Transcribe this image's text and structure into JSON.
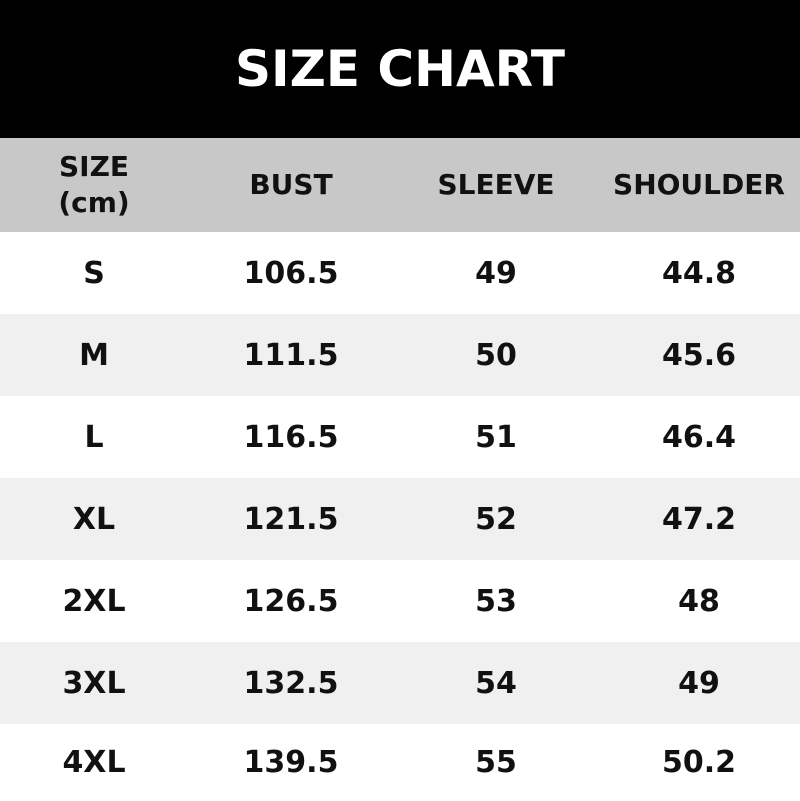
{
  "title": "SIZE CHART",
  "table": {
    "headers": [
      "SIZE",
      "BUST",
      "SLEEVE",
      "SHOULDER"
    ],
    "unit_label": "(cm)",
    "rows": [
      [
        "S",
        "106.5",
        "49",
        "44.8"
      ],
      [
        "M",
        "111.5",
        "50",
        "45.6"
      ],
      [
        "L",
        "116.5",
        "51",
        "46.4"
      ],
      [
        "XL",
        "121.5",
        "52",
        "47.2"
      ],
      [
        "2XL",
        "126.5",
        "53",
        "48"
      ],
      [
        "3XL",
        "132.5",
        "54",
        "49"
      ],
      [
        "4XL",
        "139.5",
        "55",
        "50.2"
      ]
    ]
  },
  "colors": {
    "header_bg": "#000000",
    "column_header_bg": "#c8c8c8",
    "alt_row_bg": "#f0f0f0"
  }
}
